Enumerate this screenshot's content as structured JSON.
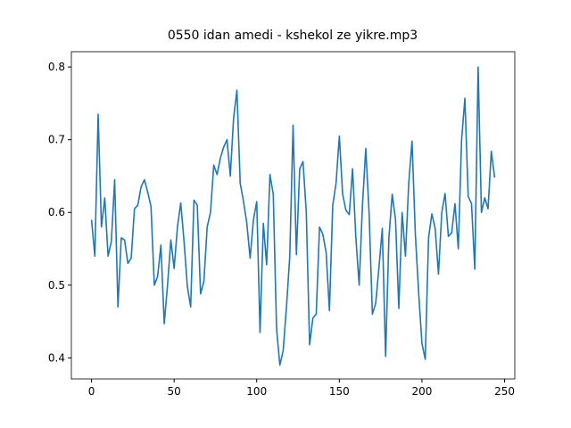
{
  "chart_data": {
    "type": "line",
    "title": "0550 idan amedi - kshekol ze yikre.mp3",
    "x": [
      0,
      2,
      4,
      6,
      8,
      10,
      12,
      14,
      16,
      18,
      20,
      22,
      24,
      26,
      28,
      30,
      32,
      34,
      36,
      38,
      40,
      42,
      44,
      46,
      48,
      50,
      52,
      54,
      56,
      58,
      60,
      62,
      64,
      66,
      68,
      70,
      72,
      74,
      76,
      78,
      80,
      82,
      84,
      86,
      88,
      90,
      92,
      94,
      96,
      98,
      100,
      102,
      104,
      106,
      108,
      110,
      112,
      114,
      116,
      118,
      120,
      122,
      124,
      126,
      128,
      130,
      132,
      134,
      136,
      138,
      140,
      142,
      144,
      146,
      148,
      150,
      152,
      154,
      156,
      158,
      160,
      162,
      164,
      166,
      168,
      170,
      172,
      174,
      176,
      178,
      180,
      182,
      184,
      186,
      188,
      190,
      192,
      194,
      196,
      198,
      200,
      202,
      204,
      206,
      208,
      210,
      212,
      214,
      216,
      218,
      220,
      222,
      224,
      226,
      228,
      230,
      232,
      234,
      236,
      238,
      240,
      242,
      244
    ],
    "series": [
      {
        "color": "#1f77b4",
        "values": [
          0.59,
          0.54,
          0.735,
          0.58,
          0.62,
          0.54,
          0.56,
          0.645,
          0.47,
          0.565,
          0.562,
          0.53,
          0.537,
          0.605,
          0.61,
          0.635,
          0.645,
          0.628,
          0.608,
          0.5,
          0.512,
          0.555,
          0.447,
          0.5,
          0.562,
          0.523,
          0.58,
          0.613,
          0.56,
          0.498,
          0.47,
          0.617,
          0.61,
          0.488,
          0.505,
          0.58,
          0.6,
          0.665,
          0.652,
          0.675,
          0.69,
          0.7,
          0.65,
          0.73,
          0.768,
          0.64,
          0.615,
          0.585,
          0.537,
          0.59,
          0.615,
          0.435,
          0.585,
          0.528,
          0.652,
          0.625,
          0.44,
          0.39,
          0.41,
          0.47,
          0.54,
          0.72,
          0.542,
          0.66,
          0.67,
          0.6,
          0.418,
          0.455,
          0.46,
          0.58,
          0.57,
          0.545,
          0.465,
          0.61,
          0.64,
          0.705,
          0.625,
          0.603,
          0.597,
          0.66,
          0.565,
          0.5,
          0.61,
          0.688,
          0.6,
          0.46,
          0.475,
          0.525,
          0.578,
          0.402,
          0.565,
          0.625,
          0.59,
          0.468,
          0.6,
          0.54,
          0.64,
          0.698,
          0.57,
          0.49,
          0.42,
          0.398,
          0.565,
          0.598,
          0.578,
          0.515,
          0.6,
          0.626,
          0.567,
          0.572,
          0.612,
          0.55,
          0.7,
          0.757,
          0.622,
          0.612,
          0.522,
          0.8,
          0.6,
          0.62,
          0.605,
          0.684,
          0.648
        ]
      }
    ],
    "xlim": [
      -12.2,
      256.2
    ],
    "ylim": [
      0.371,
      0.821
    ],
    "xticks": [
      0,
      50,
      100,
      150,
      200,
      250
    ],
    "yticks": [
      0.4,
      0.5,
      0.6,
      0.7,
      0.8
    ]
  }
}
